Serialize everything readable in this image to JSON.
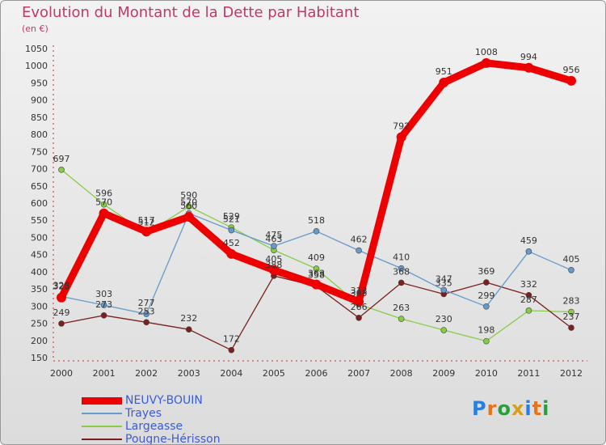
{
  "header": {
    "title": "Evolution du Montant de la Dette par Habitant",
    "unit": "(en €)"
  },
  "logo": {
    "text": "Proxiti",
    "colors": [
      "#2a7de1",
      "#e8731a",
      "#2a9d3f",
      "#d4a017",
      "#2a7de1",
      "#e8731a",
      "#2a9d3f"
    ]
  },
  "chart_data": {
    "type": "line",
    "x": [
      "2000",
      "2001",
      "2002",
      "2003",
      "2004",
      "2005",
      "2006",
      "2007",
      "2008",
      "2009",
      "2010",
      "2011",
      "2012"
    ],
    "ylim": [
      150,
      1050
    ],
    "yticks": [
      150,
      200,
      250,
      300,
      350,
      400,
      450,
      500,
      550,
      600,
      650,
      700,
      750,
      800,
      850,
      900,
      950,
      1000,
      1050
    ],
    "grid": false,
    "legend": "bottom-left",
    "series": [
      {
        "name": "NEUVY-BOUIN",
        "color": "#ee0000",
        "values": [
          325,
          570,
          517,
          560,
          452,
          405,
          363,
          313,
          792,
          951,
          1008,
          994,
          956
        ]
      },
      {
        "name": "Trayes",
        "color": "#6699cc",
        "values": [
          328,
          303,
          277,
          570,
          521,
          475,
          518,
          462,
          410,
          347,
          299,
          459,
          405
        ]
      },
      {
        "name": "Largeasse",
        "color": "#88cc44",
        "values": [
          697,
          596,
          512,
          590,
          529,
          463,
          409,
          305,
          263,
          230,
          198,
          287,
          283
        ]
      },
      {
        "name": "Pougne-Hérisson",
        "color": "#7a2020",
        "values": [
          249,
          273,
          253,
          232,
          172,
          388,
          358,
          266,
          368,
          335,
          369,
          332,
          237
        ]
      }
    ]
  }
}
